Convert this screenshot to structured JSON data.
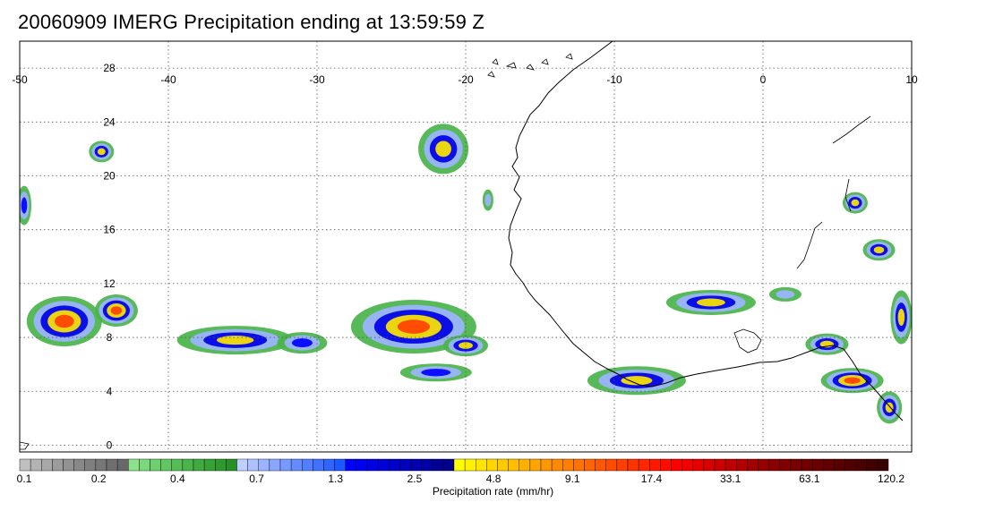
{
  "title": "20060909 IMERG Precipitation ending at 13:59:59 Z",
  "lon_ticks": [
    "-50",
    "-40",
    "-30",
    "-20",
    "-10",
    "0",
    "10"
  ],
  "lat_ticks": [
    "28",
    "24",
    "20",
    "16",
    "12",
    "8",
    "4",
    "0"
  ],
  "colorbar": {
    "label": "Precipitation rate (mm/hr)",
    "tick_labels": [
      "0.1",
      "0.2",
      "0.4",
      "0.7",
      "1.3",
      "2.5",
      "4.8",
      "9.1",
      "17.4",
      "33.1",
      "63.1",
      "120.2"
    ],
    "colors": [
      "#bfbfbf",
      "#b3b3b3",
      "#a8a8a8",
      "#9c9c9c",
      "#929292",
      "#888888",
      "#7f7f7f",
      "#777777",
      "#6f6f6f",
      "#686868",
      "#8be28b",
      "#7cd87c",
      "#6ecf6e",
      "#62c662",
      "#56bd56",
      "#4ab34a",
      "#40aa40",
      "#37a137",
      "#2f992f",
      "#279127",
      "#bfcfff",
      "#adc2ff",
      "#9bb4ff",
      "#89a7ff",
      "#779aff",
      "#658cff",
      "#537fff",
      "#4172ff",
      "#2f64ff",
      "#1d57ff",
      "#0000ff",
      "#0000f2",
      "#0000e5",
      "#0000d8",
      "#0000cb",
      "#0000be",
      "#0000b1",
      "#0000a4",
      "#000097",
      "#00008a",
      "#ffff00",
      "#fff200",
      "#ffe500",
      "#ffd800",
      "#ffcb00",
      "#ffbe00",
      "#ffb100",
      "#ffa400",
      "#ff9700",
      "#ff8a00",
      "#ff8000",
      "#ff7300",
      "#ff6600",
      "#ff5900",
      "#ff4c00",
      "#ff4000",
      "#ff3300",
      "#ff2600",
      "#ff1900",
      "#ff0c00",
      "#ff0000",
      "#f20000",
      "#e50000",
      "#d80000",
      "#cb0000",
      "#be0000",
      "#b10000",
      "#a40000",
      "#970000",
      "#8a0000",
      "#800000",
      "#780000",
      "#700000",
      "#680000",
      "#600000",
      "#580000",
      "#500000",
      "#480000",
      "#400000",
      "#380000"
    ]
  },
  "cells": [
    {
      "lon": -47.0,
      "lat": 9.2,
      "rx": 42,
      "ry": 28,
      "level": 4
    },
    {
      "lon": -43.5,
      "lat": 10.0,
      "rx": 24,
      "ry": 18,
      "level": 4
    },
    {
      "lon": -44.5,
      "lat": 21.8,
      "rx": 14,
      "ry": 12,
      "level": 3
    },
    {
      "lon": -49.7,
      "lat": 17.8,
      "rx": 8,
      "ry": 22,
      "level": 2
    },
    {
      "lon": -35.5,
      "lat": 7.8,
      "rx": 65,
      "ry": 16,
      "level": 3
    },
    {
      "lon": -31.0,
      "lat": 7.6,
      "rx": 28,
      "ry": 12,
      "level": 2
    },
    {
      "lon": -21.5,
      "lat": 22.0,
      "rx": 28,
      "ry": 28,
      "level": 3
    },
    {
      "lon": -23.5,
      "lat": 8.8,
      "rx": 70,
      "ry": 30,
      "level": 4
    },
    {
      "lon": -20.0,
      "lat": 7.4,
      "rx": 25,
      "ry": 12,
      "level": 3
    },
    {
      "lon": -22.0,
      "lat": 5.4,
      "rx": 40,
      "ry": 10,
      "level": 2
    },
    {
      "lon": -18.5,
      "lat": 18.2,
      "rx": 6,
      "ry": 12,
      "level": 1
    },
    {
      "lon": -8.5,
      "lat": 4.8,
      "rx": 55,
      "ry": 16,
      "level": 3
    },
    {
      "lon": -3.5,
      "lat": 10.6,
      "rx": 50,
      "ry": 14,
      "level": 3
    },
    {
      "lon": 6.2,
      "lat": 18.0,
      "rx": 14,
      "ry": 12,
      "level": 3
    },
    {
      "lon": 7.8,
      "lat": 14.5,
      "rx": 18,
      "ry": 12,
      "level": 3
    },
    {
      "lon": 6.0,
      "lat": 4.8,
      "rx": 35,
      "ry": 14,
      "level": 4
    },
    {
      "lon": 4.3,
      "lat": 7.5,
      "rx": 24,
      "ry": 12,
      "level": 3
    },
    {
      "lon": 9.3,
      "lat": 9.5,
      "rx": 12,
      "ry": 30,
      "level": 3
    },
    {
      "lon": 8.5,
      "lat": 2.8,
      "rx": 14,
      "ry": 18,
      "level": 3
    },
    {
      "lon": 1.5,
      "lat": 11.2,
      "rx": 18,
      "ry": 8,
      "level": 1
    }
  ]
}
